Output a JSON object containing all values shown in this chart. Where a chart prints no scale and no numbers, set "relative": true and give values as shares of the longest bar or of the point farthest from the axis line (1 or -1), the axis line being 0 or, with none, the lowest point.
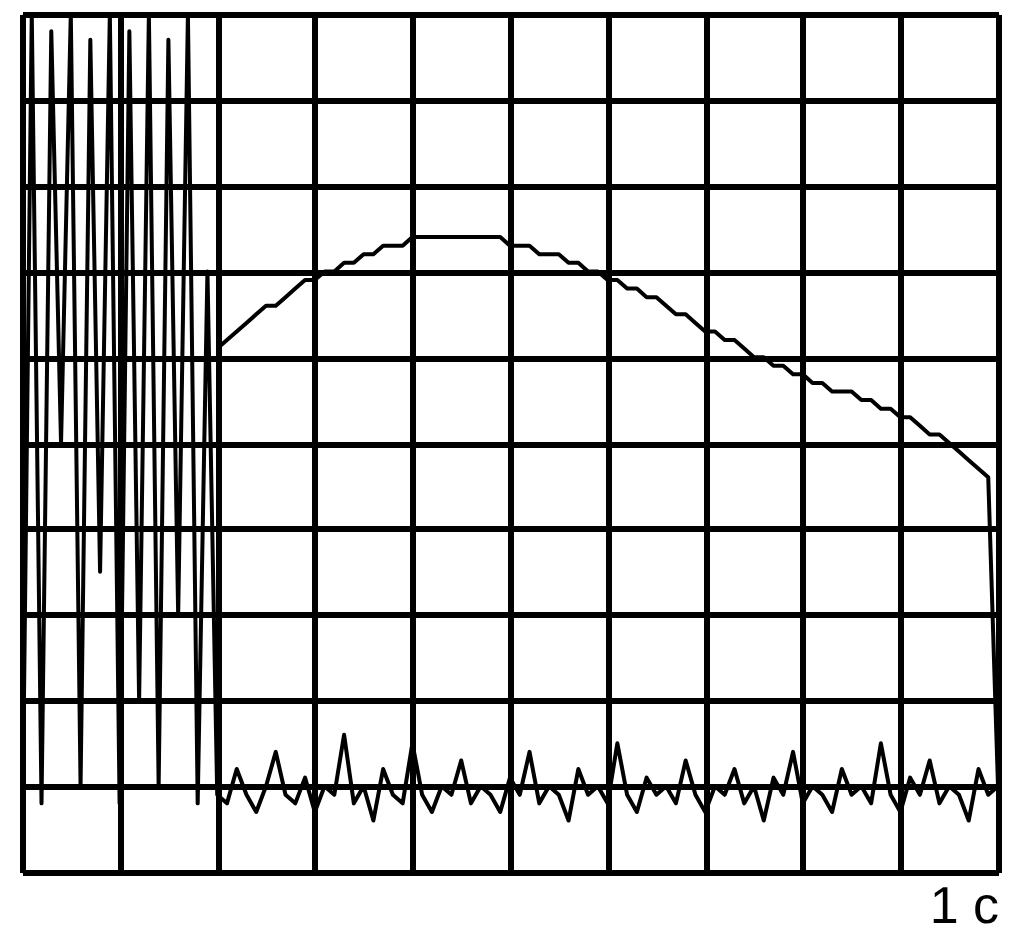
{
  "chart_data": {
    "type": "line",
    "relative": true,
    "xlabel": "1 c",
    "tick_labels": false,
    "grid": true,
    "marker": "none",
    "line_style": "solid",
    "categories": [
      null,
      null,
      null,
      null,
      null,
      null,
      null,
      null,
      null,
      null,
      null,
      null,
      null,
      null,
      null,
      null,
      null,
      null,
      null,
      null,
      null,
      null,
      null,
      null,
      null,
      null,
      null,
      null,
      null,
      null,
      null,
      null,
      null,
      null,
      null,
      null,
      null,
      null,
      null,
      null,
      null,
      null,
      null,
      null,
      null,
      null,
      null,
      null,
      null,
      null,
      null,
      null,
      null,
      null,
      null,
      null,
      null,
      null,
      null,
      null,
      null,
      null,
      null,
      null,
      null,
      null,
      null,
      null,
      null,
      null,
      null,
      null,
      null,
      null,
      null,
      null,
      null,
      null,
      null,
      null,
      null,
      null,
      null,
      null,
      null,
      null,
      null,
      null,
      null,
      null,
      null,
      null,
      null,
      null,
      null,
      null,
      null,
      null,
      null,
      null,
      null
    ],
    "series": [
      {
        "color": "#000000",
        "values": [
          0,
          1,
          0.08,
          0.98,
          0.5,
          1,
          0.1,
          0.97,
          0.35,
          1,
          0.08,
          0.98,
          0.2,
          1,
          0.1,
          0.97,
          0.3,
          1,
          0.08,
          0.7,
          0.09,
          0.08,
          0.12,
          0.09,
          0.07,
          0.1,
          0.14,
          0.09,
          0.08,
          0.11,
          0.07,
          0.1,
          0.09,
          0.16,
          0.08,
          0.1,
          0.06,
          0.12,
          0.09,
          0.08,
          0.15,
          0.09,
          0.07,
          0.1,
          0.09,
          0.13,
          0.08,
          0.1,
          0.09,
          0.07,
          0.11,
          0.09,
          0.14,
          0.08,
          0.1,
          0.09,
          0.06,
          0.12,
          0.09,
          0.1,
          0.08,
          0.15,
          0.09,
          0.07,
          0.11,
          0.09,
          0.1,
          0.08,
          0.13,
          0.09,
          0.07,
          0.1,
          0.09,
          0.12,
          0.08,
          0.1,
          0.06,
          0.11,
          0.09,
          0.14,
          0.08,
          0.1,
          0.09,
          0.07,
          0.12,
          0.09,
          0.1,
          0.08,
          0.15,
          0.09,
          0.07,
          0.11,
          0.09,
          0.13,
          0.08,
          0.1,
          0.09,
          0.06,
          0.12,
          0.09,
          0.1
        ]
      },
      {
        "color": "#000000",
        "values": [
          null,
          null,
          null,
          null,
          null,
          null,
          null,
          null,
          null,
          null,
          null,
          null,
          null,
          null,
          null,
          null,
          null,
          null,
          null,
          null,
          0.61,
          0.62,
          0.63,
          0.64,
          0.65,
          0.66,
          0.66,
          0.67,
          0.68,
          0.69,
          0.69,
          0.7,
          0.7,
          0.71,
          0.71,
          0.72,
          0.72,
          0.73,
          0.73,
          0.73,
          0.74,
          0.74,
          0.74,
          0.74,
          0.74,
          0.74,
          0.74,
          0.74,
          0.74,
          0.74,
          0.73,
          0.73,
          0.73,
          0.72,
          0.72,
          0.72,
          0.71,
          0.71,
          0.7,
          0.7,
          0.69,
          0.69,
          0.68,
          0.68,
          0.67,
          0.67,
          0.66,
          0.65,
          0.65,
          0.64,
          0.63,
          0.63,
          0.62,
          0.62,
          0.61,
          0.6,
          0.6,
          0.59,
          0.59,
          0.58,
          0.58,
          0.57,
          0.57,
          0.56,
          0.56,
          0.56,
          0.55,
          0.55,
          0.54,
          0.54,
          0.53,
          0.53,
          0.52,
          0.51,
          0.51,
          0.5,
          0.49,
          0.48,
          0.47,
          0.46,
          0.1
        ]
      }
    ]
  }
}
